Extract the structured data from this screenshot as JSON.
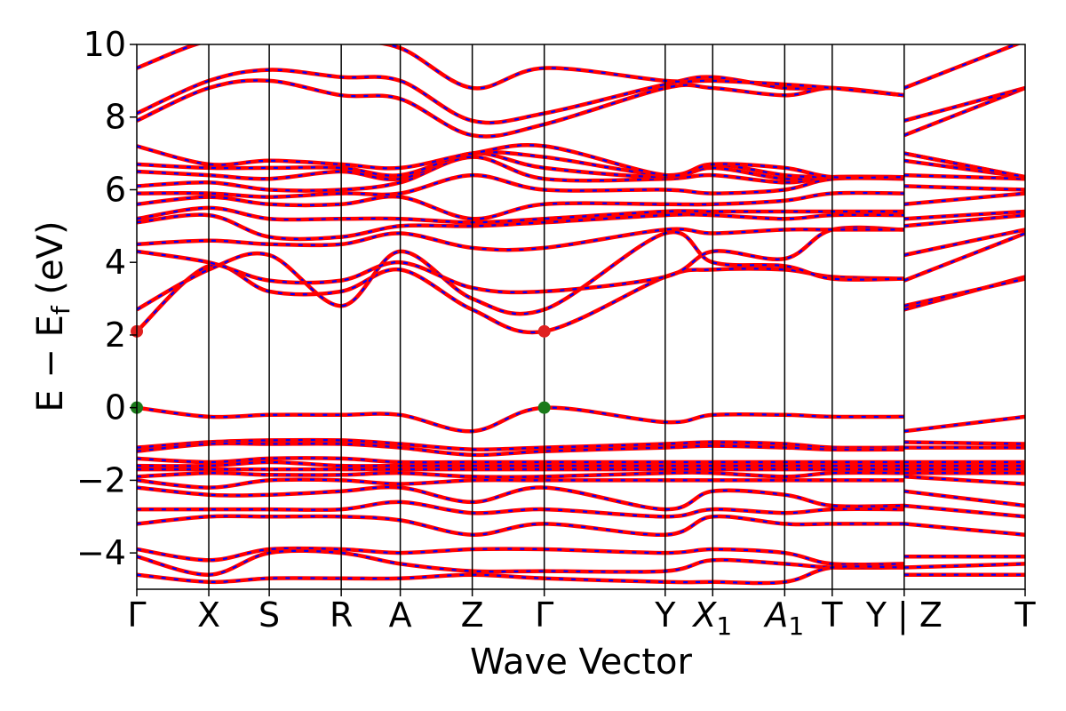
{
  "chart_data": {
    "type": "line",
    "xlabel": "Wave Vector",
    "ylabel": "E − E",
    "ylabel_sub": "f",
    "ylabel_unit": "(eV)",
    "ylim": [
      -5,
      10
    ],
    "yticks": [
      -4,
      -2,
      0,
      2,
      4,
      6,
      8,
      10
    ],
    "ytick_labels": [
      "−4",
      "−2",
      "0",
      "2",
      "4",
      "6",
      "8",
      "10"
    ],
    "kpoints": [
      {
        "label": "Γ",
        "sub": "",
        "x": 0.0
      },
      {
        "label": "X",
        "sub": "",
        "x": 0.5
      },
      {
        "label": "S",
        "sub": "",
        "x": 0.92
      },
      {
        "label": "R",
        "sub": "",
        "x": 1.42
      },
      {
        "label": "A",
        "sub": "",
        "x": 1.83
      },
      {
        "label": "Z",
        "sub": "",
        "x": 2.33
      },
      {
        "label": "Γ",
        "sub": "",
        "x": 2.83
      },
      {
        "label": "Y",
        "sub": "",
        "x": 3.67
      },
      {
        "label": "X",
        "sub": "1",
        "x": 4.0
      },
      {
        "label": "A",
        "sub": "1",
        "x": 4.5
      },
      {
        "label": "T",
        "sub": "",
        "x": 4.83
      },
      {
        "label": "Y | Z",
        "sub": "",
        "x": 5.33
      },
      {
        "label": "T",
        "sub": "",
        "x": 6.17
      }
    ],
    "xlim": [
      0,
      6.17
    ],
    "colors": {
      "band": "#ff0000",
      "overlay": "#0000ff",
      "cbm_marker": "#e02020",
      "vbm_marker": "#1a7a1a"
    },
    "markers": [
      {
        "kind": "CBM",
        "x": 0.0,
        "y": 2.1
      },
      {
        "kind": "CBM",
        "x": 2.83,
        "y": 2.1
      },
      {
        "kind": "VBM",
        "x": 0.0,
        "y": 0.0
      },
      {
        "kind": "VBM",
        "x": 2.83,
        "y": 0.0
      }
    ],
    "bands": [
      {
        "name": "c1",
        "y": [
          2.1,
          3.9,
          3.2,
          3.2,
          3.8,
          2.7,
          2.1,
          3.6,
          3.8,
          3.8,
          3.6,
          3.55,
          2.7,
          3.6
        ]
      },
      {
        "name": "c2",
        "y": [
          2.7,
          3.8,
          4.2,
          2.8,
          4.3,
          3.0,
          2.7,
          4.8,
          4.0,
          3.9,
          3.55,
          3.55,
          2.8,
          3.55
        ]
      },
      {
        "name": "c3",
        "y": [
          4.3,
          4.0,
          3.5,
          3.5,
          4.0,
          3.3,
          3.2,
          3.6,
          4.3,
          4.1,
          4.9,
          4.9,
          3.5,
          4.8
        ]
      },
      {
        "name": "c4",
        "y": [
          4.5,
          4.6,
          4.5,
          4.5,
          4.8,
          4.4,
          4.4,
          4.9,
          4.8,
          4.9,
          4.9,
          4.9,
          4.2,
          4.9
        ]
      },
      {
        "name": "c5",
        "y": [
          5.1,
          5.3,
          4.7,
          4.7,
          5.0,
          5.0,
          5.1,
          5.3,
          5.3,
          5.2,
          5.3,
          5.3,
          5.0,
          5.3
        ]
      },
      {
        "name": "c6",
        "y": [
          5.2,
          5.5,
          5.2,
          5.2,
          5.2,
          5.1,
          5.2,
          5.4,
          5.4,
          5.4,
          5.4,
          5.4,
          5.2,
          5.4
        ]
      },
      {
        "name": "c7",
        "y": [
          5.6,
          5.8,
          5.6,
          5.6,
          5.8,
          5.2,
          5.6,
          5.6,
          5.6,
          5.7,
          5.9,
          5.9,
          5.6,
          5.9
        ]
      },
      {
        "name": "c8",
        "y": [
          5.9,
          5.9,
          5.8,
          5.9,
          5.9,
          6.4,
          6.0,
          6.0,
          5.9,
          6.0,
          6.3,
          6.3,
          6.1,
          6.0
        ]
      },
      {
        "name": "c9",
        "y": [
          6.1,
          6.2,
          6.0,
          6.0,
          6.2,
          6.9,
          6.3,
          6.3,
          6.4,
          6.2,
          6.35,
          6.35,
          6.4,
          6.3
        ]
      },
      {
        "name": "c10",
        "y": [
          6.5,
          6.4,
          6.3,
          6.5,
          6.3,
          7.0,
          6.6,
          6.35,
          6.6,
          6.3,
          6.35,
          6.35,
          6.8,
          6.35
        ]
      },
      {
        "name": "c11",
        "y": [
          6.7,
          6.6,
          6.6,
          6.6,
          6.4,
          7.0,
          6.9,
          6.4,
          6.7,
          6.4,
          6.35,
          6.35,
          7.0,
          6.35
        ]
      },
      {
        "name": "c12",
        "y": [
          7.2,
          6.7,
          6.8,
          6.7,
          6.6,
          7.0,
          7.2,
          6.4,
          6.7,
          6.6,
          6.35,
          6.35,
          7.0,
          6.35
        ]
      },
      {
        "name": "c13",
        "y": [
          7.9,
          8.8,
          9.0,
          8.6,
          8.5,
          7.5,
          7.8,
          8.8,
          8.8,
          8.6,
          8.8,
          8.6,
          7.5,
          8.8
        ]
      },
      {
        "name": "c14",
        "y": [
          8.1,
          9.0,
          9.3,
          9.1,
          9.0,
          7.9,
          8.1,
          8.9,
          9.1,
          8.8,
          8.8,
          8.6,
          7.9,
          8.8
        ]
      },
      {
        "name": "c15",
        "y": [
          9.35,
          10.1,
          10.1,
          10.1,
          9.9,
          8.8,
          9.35,
          9.0,
          9.0,
          8.9,
          8.8,
          8.6,
          8.8,
          10.1
        ]
      },
      {
        "name": "v1",
        "y": [
          0.0,
          -0.25,
          -0.2,
          -0.2,
          -0.2,
          -0.65,
          0.0,
          -0.4,
          -0.2,
          -0.2,
          -0.25,
          -0.25,
          -0.65,
          -0.25
        ]
      },
      {
        "name": "v2",
        "y": [
          -1.1,
          -0.95,
          -0.9,
          -0.9,
          -1.0,
          -1.15,
          -1.1,
          -1.0,
          -0.95,
          -1.0,
          -1.1,
          -1.1,
          -0.95,
          -1.0
        ]
      },
      {
        "name": "v3",
        "y": [
          -1.2,
          -1.0,
          -1.0,
          -1.0,
          -1.1,
          -1.3,
          -1.2,
          -1.1,
          -1.05,
          -1.1,
          -1.15,
          -1.15,
          -1.1,
          -1.1
        ]
      },
      {
        "name": "v4",
        "y": [
          -1.4,
          -1.5,
          -1.4,
          -1.4,
          -1.5,
          -1.5,
          -1.5,
          -1.5,
          -1.5,
          -1.5,
          -1.5,
          -1.5,
          -1.5,
          -1.5
        ]
      },
      {
        "name": "v5",
        "y": [
          -1.6,
          -1.6,
          -1.5,
          -1.6,
          -1.6,
          -1.6,
          -1.6,
          -1.6,
          -1.6,
          -1.6,
          -1.6,
          -1.6,
          -1.6,
          -1.6
        ]
      },
      {
        "name": "v6",
        "y": [
          -1.7,
          -1.7,
          -1.7,
          -1.7,
          -1.7,
          -1.7,
          -1.7,
          -1.7,
          -1.7,
          -1.7,
          -1.7,
          -1.7,
          -1.7,
          -1.7
        ]
      },
      {
        "name": "v7",
        "y": [
          -1.9,
          -1.8,
          -1.85,
          -1.85,
          -1.8,
          -1.9,
          -1.9,
          -1.8,
          -1.8,
          -1.9,
          -1.8,
          -1.8,
          -1.8,
          -1.8
        ]
      },
      {
        "name": "v8",
        "y": [
          -2.0,
          -2.2,
          -2.0,
          -2.0,
          -2.1,
          -2.0,
          -2.0,
          -2.0,
          -2.0,
          -2.0,
          -2.0,
          -2.0,
          -1.9,
          -2.1
        ]
      },
      {
        "name": "v9",
        "y": [
          -2.2,
          -2.4,
          -2.4,
          -2.3,
          -2.2,
          -2.6,
          -2.2,
          -2.8,
          -2.3,
          -2.4,
          -2.7,
          -2.7,
          -2.3,
          -2.7
        ]
      },
      {
        "name": "v10",
        "y": [
          -2.8,
          -2.8,
          -2.8,
          -2.8,
          -2.6,
          -2.9,
          -2.8,
          -3.0,
          -2.8,
          -2.9,
          -2.8,
          -2.8,
          -2.7,
          -3.0
        ]
      },
      {
        "name": "v11",
        "y": [
          -3.2,
          -3.0,
          -3.0,
          -3.0,
          -3.1,
          -3.5,
          -3.2,
          -3.5,
          -3.0,
          -3.2,
          -3.2,
          -3.2,
          -3.2,
          -3.5
        ]
      },
      {
        "name": "v12",
        "y": [
          -3.9,
          -4.2,
          -3.9,
          -3.9,
          -4.0,
          -3.9,
          -3.9,
          -4.0,
          -3.9,
          -4.0,
          -4.3,
          -4.3,
          -4.1,
          -4.1
        ]
      },
      {
        "name": "v13",
        "y": [
          -4.1,
          -4.6,
          -4.0,
          -4.0,
          -4.3,
          -4.5,
          -4.5,
          -4.5,
          -4.2,
          -4.3,
          -4.4,
          -4.4,
          -4.4,
          -4.3
        ]
      },
      {
        "name": "v14",
        "y": [
          -4.6,
          -4.8,
          -4.7,
          -4.7,
          -4.7,
          -4.6,
          -4.7,
          -4.8,
          -4.8,
          -4.8,
          -4.4,
          -4.4,
          -4.6,
          -4.6
        ]
      }
    ]
  }
}
